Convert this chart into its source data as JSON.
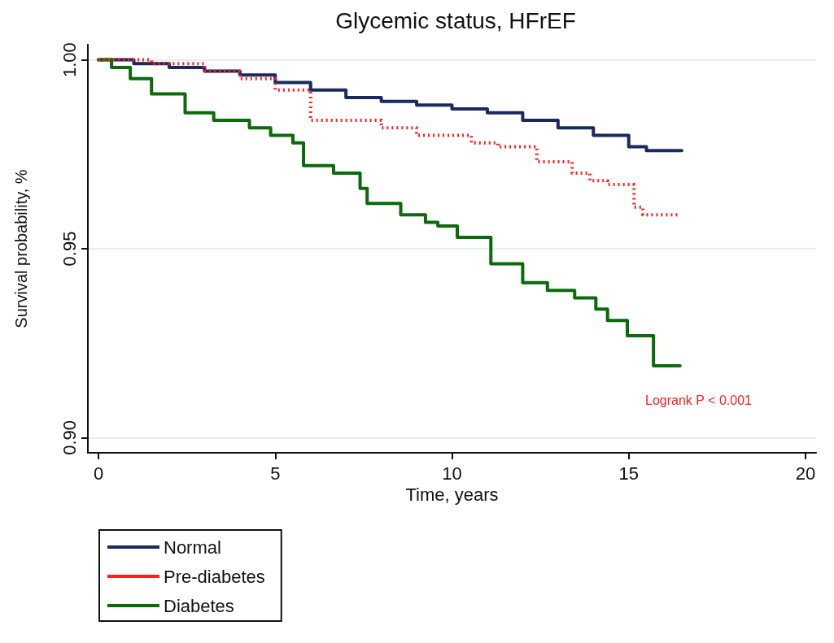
{
  "chart_data": {
    "type": "step",
    "title": "Glycemic status, HFrEF",
    "xlabel": "Time, years",
    "ylabel": "Survival probability, %",
    "annotations": [
      "Logrank P < 0.001"
    ],
    "xlim": [
      -0.3,
      20.3
    ],
    "xticks": [
      0,
      5,
      10,
      15,
      20
    ],
    "ylim": [
      0.896,
      1.004
    ],
    "yticks": [
      {
        "value": 0.9,
        "label": "0.90"
      },
      {
        "value": 0.95,
        "label": "0.95"
      },
      {
        "value": 1.0,
        "label": "1.00"
      }
    ],
    "grid": "y",
    "legend": "bottom",
    "marker": "none",
    "series": [
      {
        "name": "Normal",
        "color": "#1a2a5e",
        "line_style": "solid",
        "x": [
          0,
          1,
          2,
          3,
          4,
          5,
          6,
          7,
          8,
          9,
          10,
          11,
          12,
          13,
          14,
          15,
          15.5,
          16.5
        ],
        "values": [
          1.0,
          0.999,
          0.998,
          0.997,
          0.996,
          0.994,
          0.992,
          0.99,
          0.989,
          0.988,
          0.987,
          0.986,
          0.984,
          0.982,
          0.98,
          0.977,
          0.976,
          0.976
        ]
      },
      {
        "name": "Pre-diabetes",
        "color": "#ff2020",
        "line_style": "dotted",
        "x": [
          0,
          1.5,
          3,
          4,
          5,
          6,
          8,
          9,
          10.55,
          11.3,
          12.4,
          13.4,
          13.9,
          14.4,
          15.15,
          15.4,
          16.45
        ],
        "values": [
          1.0,
          0.999,
          0.997,
          0.995,
          0.992,
          0.984,
          0.982,
          0.98,
          0.978,
          0.977,
          0.973,
          0.97,
          0.968,
          0.967,
          0.961,
          0.959,
          0.959
        ]
      },
      {
        "name": "Diabetes",
        "color": "#0a6b0a",
        "line_style": "solid",
        "x": [
          0,
          0.37,
          0.9,
          1.5,
          2.45,
          3.26,
          4.27,
          4.87,
          5.5,
          5.8,
          6.65,
          7.4,
          7.6,
          8.55,
          9.25,
          9.6,
          10.15,
          11.1,
          12.0,
          12.7,
          13.47,
          14.07,
          14.4,
          14.96,
          15.7,
          16.45
        ],
        "values": [
          1.0,
          0.998,
          0.995,
          0.991,
          0.986,
          0.984,
          0.982,
          0.98,
          0.978,
          0.972,
          0.97,
          0.966,
          0.962,
          0.959,
          0.957,
          0.956,
          0.953,
          0.946,
          0.941,
          0.939,
          0.937,
          0.934,
          0.931,
          0.927,
          0.919,
          0.919
        ]
      }
    ]
  }
}
